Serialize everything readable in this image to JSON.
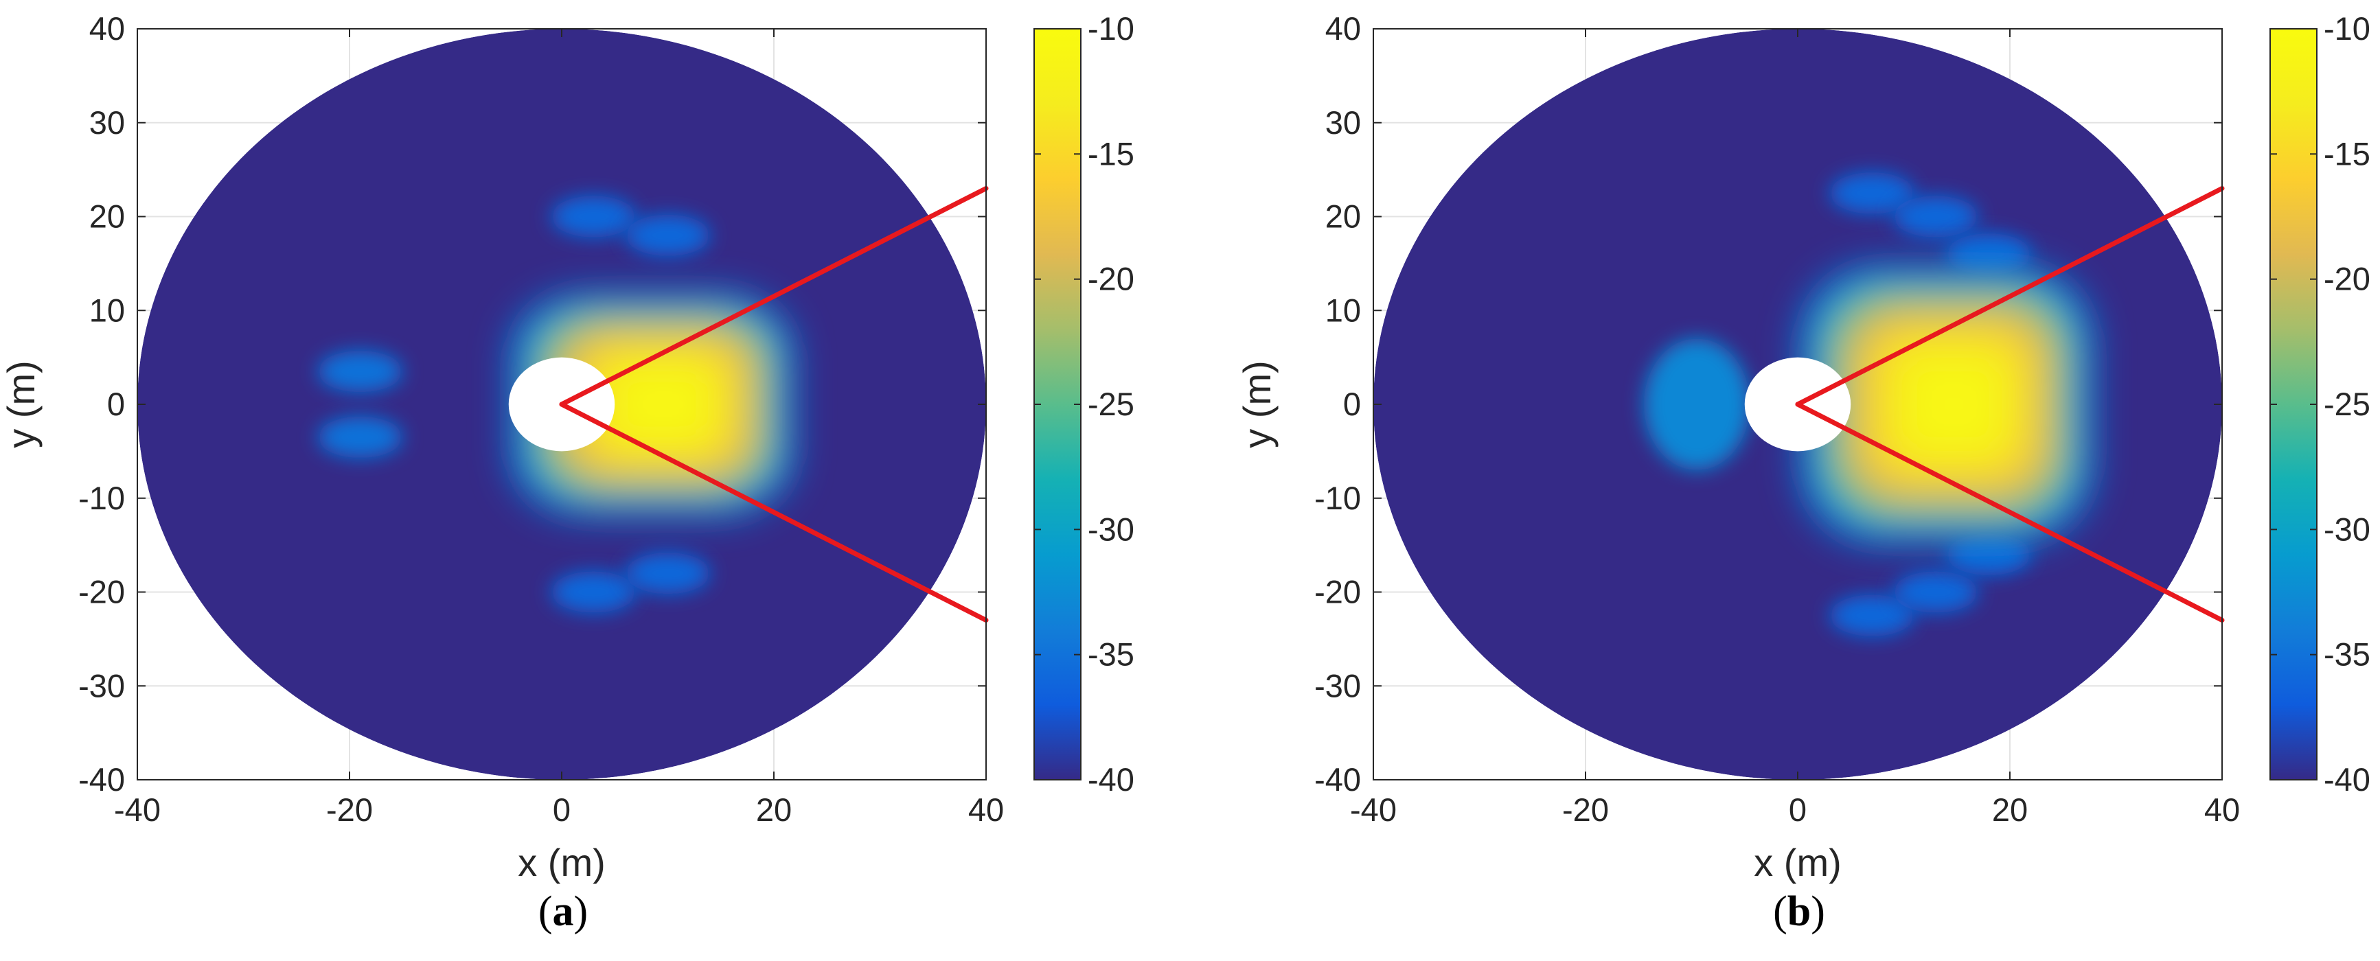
{
  "chart_data": [
    {
      "type": "heatmap",
      "panel": "(a)",
      "panel_letter": "a",
      "xlabel": "x (m)",
      "ylabel": "y (m)",
      "xlim": [
        -40,
        40
      ],
      "ylim": [
        -40,
        40
      ],
      "xticks": [
        -40,
        -20,
        0,
        20,
        40
      ],
      "yticks": [
        -40,
        -30,
        -20,
        -10,
        0,
        10,
        20,
        30,
        40
      ],
      "grid": true,
      "domain": "disk of radius 40 m with an unshaded hole of radius 5 m at the origin",
      "colorbar": {
        "range": [
          -40,
          -10
        ],
        "ticks": [
          -10,
          -15,
          -20,
          -25,
          -30,
          -35,
          -40
        ],
        "colormap": "parula"
      },
      "lines": [
        {
          "color": "#e8191e",
          "x": [
            0,
            40
          ],
          "y": [
            0,
            23
          ]
        },
        {
          "color": "#e8191e",
          "x": [
            0,
            40
          ],
          "y": [
            0,
            -23
          ]
        }
      ],
      "main_lobe": {
        "cx": 10,
        "cy": 0,
        "x_extent": [
          -5,
          22
        ],
        "y_extent": [
          -12,
          12
        ],
        "peak": -10
      },
      "side_lobes": [
        {
          "cx": 3,
          "cy": 20,
          "value": -36
        },
        {
          "cx": 10,
          "cy": 18,
          "value": -36
        },
        {
          "cx": 3,
          "cy": -20,
          "value": -36
        },
        {
          "cx": 10,
          "cy": -18,
          "value": -36
        },
        {
          "cx": -19,
          "cy": 3.5,
          "value": -35
        },
        {
          "cx": -19,
          "cy": -3.5,
          "value": -35
        }
      ]
    },
    {
      "type": "heatmap",
      "panel": "(b)",
      "panel_letter": "b",
      "xlabel": "x (m)",
      "ylabel": "y (m)",
      "xlim": [
        -40,
        40
      ],
      "ylim": [
        -40,
        40
      ],
      "xticks": [
        -40,
        -20,
        0,
        20,
        40
      ],
      "yticks": [
        -40,
        -30,
        -20,
        -10,
        0,
        10,
        20,
        30,
        40
      ],
      "grid": true,
      "domain": "disk of radius 40 m with an unshaded hole of radius 5 m at the origin",
      "colorbar": {
        "range": [
          -40,
          -10
        ],
        "ticks": [
          -10,
          -15,
          -20,
          -25,
          -30,
          -35,
          -40
        ],
        "colormap": "parula"
      },
      "lines": [
        {
          "color": "#e8191e",
          "x": [
            0,
            40
          ],
          "y": [
            0,
            23
          ]
        },
        {
          "color": "#e8191e",
          "x": [
            0,
            40
          ],
          "y": [
            0,
            -23
          ]
        }
      ],
      "main_lobe": {
        "cx": 15,
        "cy": 0,
        "x_extent": [
          0,
          28
        ],
        "y_extent": [
          -15,
          15
        ],
        "peak": -10
      },
      "side_lobes": [
        {
          "cx": 7,
          "cy": 22.5,
          "value": -36
        },
        {
          "cx": 13,
          "cy": 20,
          "value": -36
        },
        {
          "cx": 18,
          "cy": 16,
          "value": -36
        },
        {
          "cx": 7,
          "cy": -22.5,
          "value": -36
        },
        {
          "cx": 13,
          "cy": -20,
          "value": -36
        },
        {
          "cx": 18,
          "cy": -16,
          "value": -36
        },
        {
          "cx": -9.5,
          "cy": 0,
          "value": -33
        }
      ]
    }
  ]
}
